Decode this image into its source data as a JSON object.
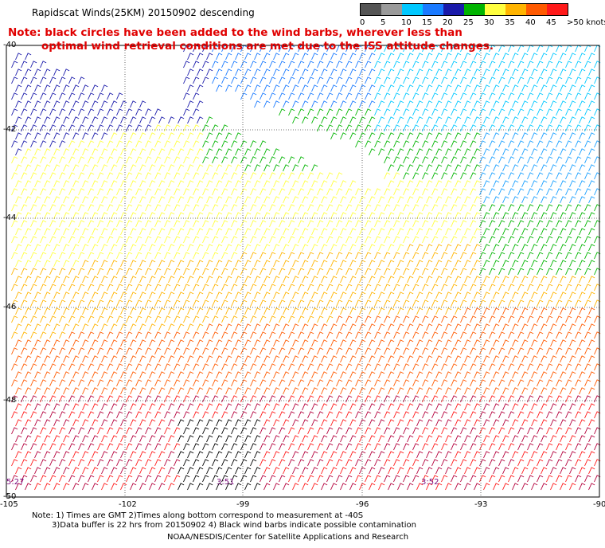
{
  "title": "Rapidscat Winds(25KM) 20150902 descending",
  "note_line1": "Note: black circles have been added to the wind barbs, wherever less than",
  "note_line2": "optimal wind retrieval conditions are met due to the ISS attitude changes.",
  "legend": {
    "labels": [
      "0",
      "5",
      "10",
      "15",
      "20",
      "25",
      "30",
      "35",
      "40",
      "45",
      ">50 knots"
    ],
    "colors": [
      "#555555",
      "#9a9a9a",
      "#00c8ff",
      "#1a7aff",
      "#1a1aaa",
      "#00b400",
      "#ffff40",
      "#ffb400",
      "#ff5a00",
      "#ff1a1a",
      "#b4003c",
      "#8c3214",
      "#e600e6",
      "#8c00c8",
      "#3c0078"
    ]
  },
  "axes": {
    "lat_labels": [
      "-40",
      "-42",
      "-44",
      "-46",
      "-48",
      "-50"
    ],
    "lon_labels": [
      "-105",
      "-102",
      "-99",
      "-96",
      "-93",
      "-90"
    ]
  },
  "times": [
    "5:27",
    "3:51",
    "3:52"
  ],
  "footer": {
    "line1": "Note: 1) Times are GMT 2)Times along bottom correspond to measurement at -40S",
    "line2": "3)Data buffer is 22 hrs from 20150902 4) Black wind barbs indicate possible contamination",
    "line3": "NOAA/NESDIS/Center for Satellite Applications and Research"
  }
}
